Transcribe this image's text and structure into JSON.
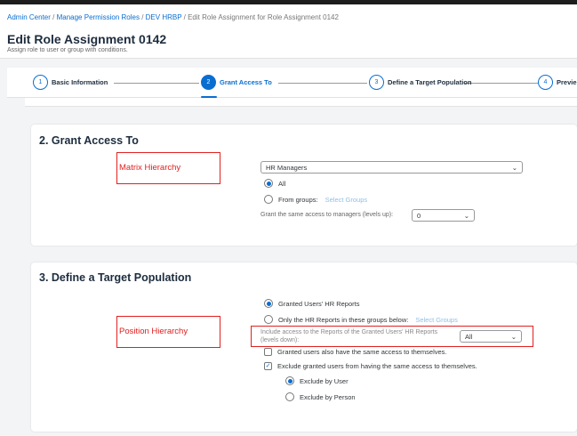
{
  "breadcrumb": [
    "Admin Center",
    "Manage Permission Roles",
    "DEV HRBP",
    "Edit Role Assignment for Role Assignment 0142"
  ],
  "title": "Edit Role Assignment 0142",
  "subtitle": "Assign role to user or group with conditions.",
  "steps": [
    {
      "num": "1",
      "label": "Basic Information"
    },
    {
      "num": "2",
      "label": "Grant Access To",
      "active": true
    },
    {
      "num": "3",
      "label": "Define a Target Population"
    },
    {
      "num": "4",
      "label": "Previe"
    }
  ],
  "accent": "#0a6ed1",
  "grant": {
    "heading": "2. Grant Access To",
    "annotation": "Matrix Hierarchy",
    "hierarchy_select": "HR Managers",
    "all": "All",
    "from_groups": "From groups:",
    "select_groups": "Select Groups",
    "managers_label": "Grant the same access to managers (levels up):",
    "managers_value": "0"
  },
  "target": {
    "heading": "3. Define a Target Population",
    "annotation": "Position Hierarchy",
    "granted_reports": "Granted Users' HR Reports",
    "only_groups": "Only the HR Reports in these groups below:",
    "select_groups": "Select Groups",
    "include_label": "Include access to the Reports of the Granted Users' HR Reports (levels down):",
    "include_value": "All",
    "self_access": "Granted users also have the same access to themselves.",
    "exclude": "Exclude granted users from having the same access to themselves.",
    "exclude_user": "Exclude by User",
    "exclude_person": "Exclude by Person"
  }
}
